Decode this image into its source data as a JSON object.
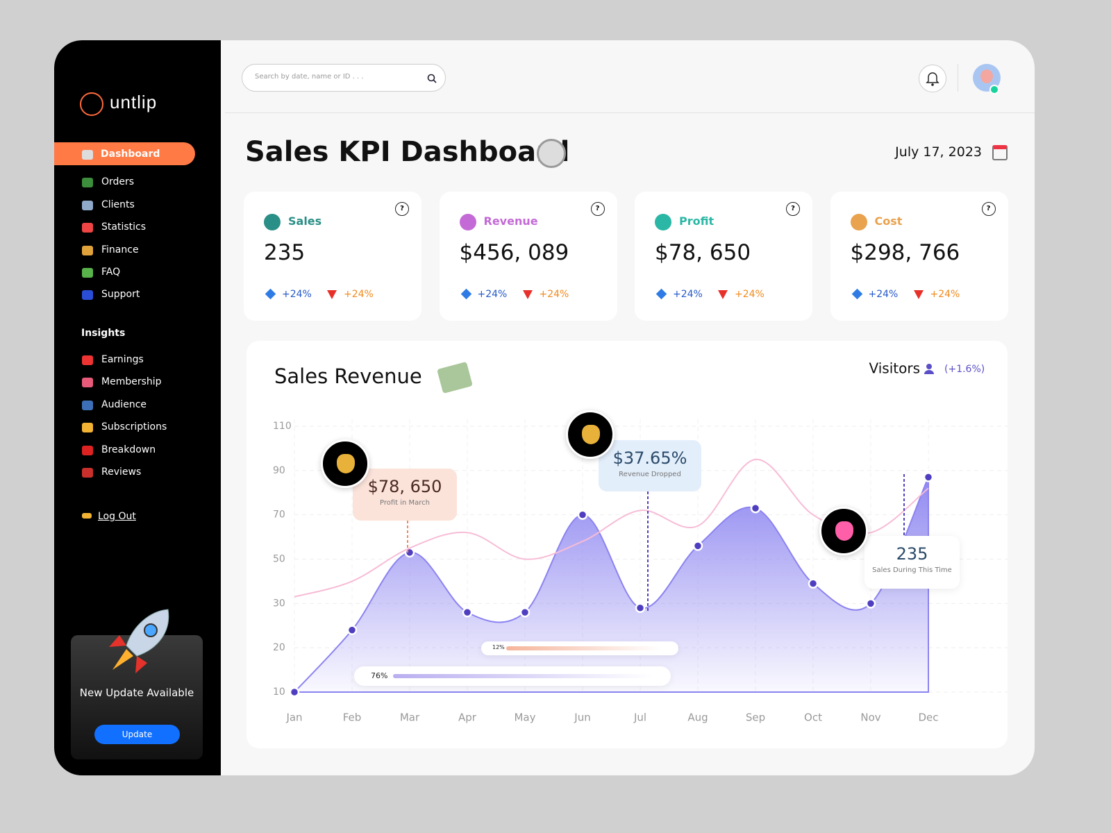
{
  "sidebar": {
    "logo": "untlip",
    "nav": [
      "Dashboard",
      "Orders",
      "Clients",
      "Statistics",
      "Finance",
      "FAQ",
      "Support"
    ],
    "insights_title": "Insights",
    "insights": [
      "Earnings",
      "Membership",
      "Audience",
      "Subscriptions",
      "Breakdown",
      "Reviews"
    ],
    "logout": "Log Out",
    "update_card": {
      "text": "New Update Available",
      "button": "Update"
    }
  },
  "header": {
    "search_placeholder": "Search by date, name or ID . . .",
    "title": "Sales KPI Dashboard",
    "date": "July 17, 2023"
  },
  "kpis": [
    {
      "label": "Sales",
      "value": "235",
      "up": "+24%",
      "down": "+24%",
      "color": "#2a8f86"
    },
    {
      "label": "Revenue",
      "value": "$456, 089",
      "up": "+24%",
      "down": "+24%",
      "color": "#c46ad6"
    },
    {
      "label": "Profit",
      "value": "$78, 650",
      "up": "+24%",
      "down": "+24%",
      "color": "#2bb7a5"
    },
    {
      "label": "Cost",
      "value": "$298, 766",
      "up": "+24%",
      "down": "+24%",
      "color": "#e9a24e"
    }
  ],
  "chart_data": {
    "type": "area",
    "title": "Sales Revenue",
    "visitors_label": "Visitors",
    "visitors_change": "(+1.6%)",
    "categories": [
      "Jan",
      "Feb",
      "Mar",
      "Apr",
      "May",
      "Jun",
      "Jul",
      "Aug",
      "Sep",
      "Oct",
      "Nov",
      "Dec"
    ],
    "series": [
      {
        "color": "#8b83f0",
        "values": [
          10,
          24,
          53,
          28,
          28,
          70,
          29,
          56,
          73,
          39,
          30,
          87
        ]
      },
      {
        "color": "#f7bcd6",
        "values": [
          33,
          40,
          55,
          62,
          50,
          58,
          72,
          65,
          95,
          70,
          62,
          82
        ]
      }
    ],
    "ylim": [
      10,
      110
    ],
    "yticks": [
      110,
      90,
      70,
      50,
      30,
      20,
      10
    ],
    "grid": true,
    "annotations": [
      {
        "value": "$78, 650",
        "label": "Profit in March"
      },
      {
        "value": "$37.65%",
        "label": "Revenue Dropped"
      },
      {
        "value": "235",
        "label": "Sales During This Time"
      }
    ],
    "sliders": [
      "12%",
      "76%"
    ]
  }
}
